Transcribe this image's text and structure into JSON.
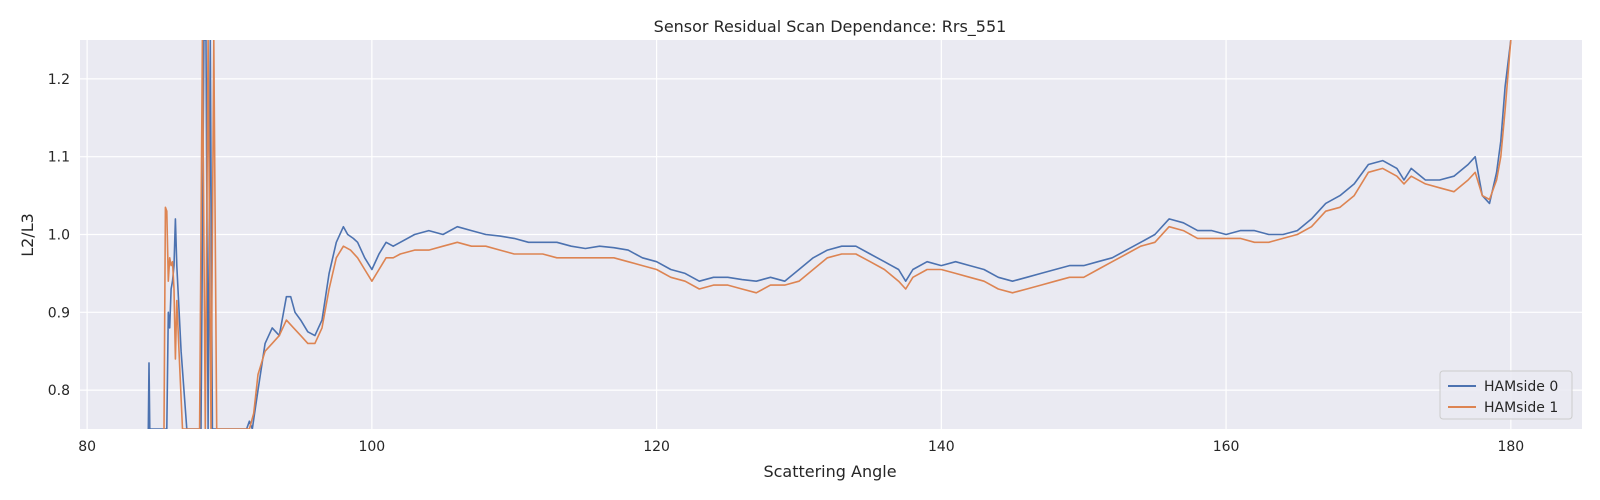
{
  "chart_data": {
    "type": "line",
    "title": "Sensor Residual Scan Dependance: Rrs_551",
    "xlabel": "Scattering Angle",
    "ylabel": "L2/L3",
    "xlim": [
      79.5,
      185
    ],
    "ylim": [
      0.75,
      1.25
    ],
    "xticks": [
      80,
      100,
      120,
      140,
      160,
      180
    ],
    "yticks": [
      0.8,
      0.9,
      1.0,
      1.1,
      1.2
    ],
    "grid": true,
    "legend": {
      "position": "lower-right"
    },
    "series": [
      {
        "name": "HAMside 0",
        "color": "#4c72b0",
        "x": [
          84.3,
          84.35,
          84.4,
          85.6,
          85.7,
          85.8,
          85.9,
          86.0,
          86.1,
          86.2,
          86.3,
          86.6,
          87.0,
          88.0,
          88.2,
          88.35,
          88.5,
          88.65,
          88.8,
          91.2,
          91.4,
          91.6,
          92.0,
          92.5,
          93.0,
          93.5,
          94.0,
          94.3,
          94.6,
          95.0,
          95.5,
          96.0,
          96.5,
          97.0,
          97.5,
          98.0,
          98.3,
          98.7,
          99.0,
          99.5,
          100.0,
          100.5,
          101.0,
          101.5,
          102.0,
          103.0,
          104.0,
          105.0,
          106.0,
          107.0,
          108.0,
          109.0,
          110.0,
          111.0,
          112.0,
          113.0,
          114.0,
          115.0,
          116.0,
          117.0,
          118.0,
          119.0,
          120.0,
          121.0,
          122.0,
          123.0,
          124.0,
          125.0,
          126.0,
          127.0,
          128.0,
          129.0,
          130.0,
          131.0,
          132.0,
          133.0,
          134.0,
          135.0,
          136.0,
          137.0,
          137.5,
          138.0,
          139.0,
          140.0,
          141.0,
          142.0,
          143.0,
          144.0,
          145.0,
          146.0,
          147.0,
          148.0,
          149.0,
          150.0,
          151.0,
          152.0,
          153.0,
          154.0,
          155.0,
          156.0,
          157.0,
          158.0,
          159.0,
          160.0,
          161.0,
          162.0,
          163.0,
          164.0,
          165.0,
          166.0,
          167.0,
          168.0,
          169.0,
          170.0,
          171.0,
          172.0,
          172.5,
          173.0,
          174.0,
          175.0,
          176.0,
          177.0,
          177.5,
          178.0,
          178.5,
          179.0,
          179.3,
          179.6,
          180.0
        ],
        "y": [
          0.75,
          0.835,
          0.75,
          0.75,
          0.9,
          0.88,
          0.93,
          0.94,
          0.96,
          1.02,
          0.96,
          0.85,
          0.75,
          0.75,
          1.25,
          1.25,
          0.75,
          1.25,
          0.75,
          0.75,
          0.76,
          0.75,
          0.8,
          0.86,
          0.88,
          0.87,
          0.92,
          0.92,
          0.9,
          0.89,
          0.875,
          0.87,
          0.89,
          0.95,
          0.99,
          1.01,
          1.0,
          0.995,
          0.99,
          0.97,
          0.955,
          0.975,
          0.99,
          0.985,
          0.99,
          1.0,
          1.005,
          1.0,
          1.01,
          1.005,
          1.0,
          0.998,
          0.995,
          0.99,
          0.99,
          0.99,
          0.985,
          0.982,
          0.985,
          0.983,
          0.98,
          0.97,
          0.965,
          0.955,
          0.95,
          0.94,
          0.945,
          0.945,
          0.942,
          0.94,
          0.945,
          0.94,
          0.955,
          0.97,
          0.98,
          0.985,
          0.985,
          0.975,
          0.965,
          0.955,
          0.94,
          0.955,
          0.965,
          0.96,
          0.965,
          0.96,
          0.955,
          0.945,
          0.94,
          0.945,
          0.95,
          0.955,
          0.96,
          0.96,
          0.965,
          0.97,
          0.98,
          0.99,
          1.0,
          1.02,
          1.015,
          1.005,
          1.005,
          1.0,
          1.005,
          1.005,
          1.0,
          1.0,
          1.005,
          1.02,
          1.04,
          1.05,
          1.065,
          1.09,
          1.095,
          1.085,
          1.07,
          1.085,
          1.07,
          1.07,
          1.075,
          1.09,
          1.1,
          1.05,
          1.04,
          1.08,
          1.12,
          1.19,
          1.25
        ]
      },
      {
        "name": "HAMside 1",
        "color": "#dd8452",
        "x": [
          85.4,
          85.5,
          85.6,
          85.7,
          85.8,
          85.9,
          86.0,
          86.1,
          86.2,
          86.3,
          86.5,
          86.7,
          87.0,
          87.9,
          88.1,
          88.3,
          88.5,
          88.7,
          88.9,
          89.1,
          91.4,
          91.7,
          92.0,
          92.5,
          93.0,
          93.5,
          94.0,
          94.5,
          95.0,
          95.5,
          96.0,
          96.5,
          97.0,
          97.5,
          98.0,
          98.5,
          99.0,
          99.5,
          100.0,
          100.5,
          101.0,
          101.5,
          102.0,
          103.0,
          104.0,
          105.0,
          106.0,
          107.0,
          108.0,
          109.0,
          110.0,
          111.0,
          112.0,
          113.0,
          114.0,
          115.0,
          116.0,
          117.0,
          118.0,
          119.0,
          120.0,
          121.0,
          122.0,
          123.0,
          124.0,
          125.0,
          126.0,
          127.0,
          128.0,
          129.0,
          130.0,
          131.0,
          132.0,
          133.0,
          134.0,
          135.0,
          136.0,
          137.0,
          137.5,
          138.0,
          139.0,
          140.0,
          141.0,
          142.0,
          143.0,
          144.0,
          145.0,
          146.0,
          147.0,
          148.0,
          149.0,
          150.0,
          151.0,
          152.0,
          153.0,
          154.0,
          155.0,
          156.0,
          157.0,
          158.0,
          159.0,
          160.0,
          161.0,
          162.0,
          163.0,
          164.0,
          165.0,
          166.0,
          167.0,
          168.0,
          169.0,
          170.0,
          171.0,
          172.0,
          172.5,
          173.0,
          174.0,
          175.0,
          176.0,
          177.0,
          177.5,
          178.0,
          178.5,
          179.0,
          179.3,
          179.6,
          180.0
        ],
        "y": [
          0.75,
          1.035,
          1.03,
          0.94,
          0.97,
          0.96,
          0.965,
          0.93,
          0.84,
          0.915,
          0.83,
          0.75,
          0.75,
          0.75,
          1.25,
          0.75,
          1.25,
          0.75,
          1.25,
          0.75,
          0.75,
          0.77,
          0.82,
          0.85,
          0.86,
          0.87,
          0.89,
          0.88,
          0.87,
          0.86,
          0.86,
          0.88,
          0.93,
          0.97,
          0.985,
          0.98,
          0.97,
          0.955,
          0.94,
          0.955,
          0.97,
          0.97,
          0.975,
          0.98,
          0.98,
          0.985,
          0.99,
          0.985,
          0.985,
          0.98,
          0.975,
          0.975,
          0.975,
          0.97,
          0.97,
          0.97,
          0.97,
          0.97,
          0.965,
          0.96,
          0.955,
          0.945,
          0.94,
          0.93,
          0.935,
          0.935,
          0.93,
          0.925,
          0.935,
          0.935,
          0.94,
          0.955,
          0.97,
          0.975,
          0.975,
          0.965,
          0.955,
          0.94,
          0.93,
          0.945,
          0.955,
          0.955,
          0.95,
          0.945,
          0.94,
          0.93,
          0.925,
          0.93,
          0.935,
          0.94,
          0.945,
          0.945,
          0.955,
          0.965,
          0.975,
          0.985,
          0.99,
          1.01,
          1.005,
          0.995,
          0.995,
          0.995,
          0.995,
          0.99,
          0.99,
          0.995,
          1.0,
          1.01,
          1.03,
          1.035,
          1.05,
          1.08,
          1.085,
          1.075,
          1.065,
          1.075,
          1.065,
          1.06,
          1.055,
          1.07,
          1.08,
          1.05,
          1.045,
          1.07,
          1.1,
          1.16,
          1.25
        ]
      }
    ]
  }
}
